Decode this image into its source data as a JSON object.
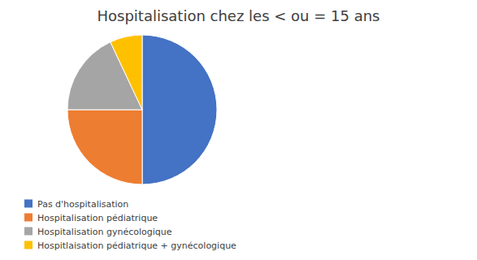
{
  "chart_data": {
    "type": "pie",
    "title": "Hospitalisation chez les < ou = 15 ans",
    "categories": [
      "Pas d'hospitalisation",
      "Hospitalisation pédiatrique",
      "Hospitalisation gynécologique",
      "Hospitlaisation pédiatrique + gynécologique"
    ],
    "values": [
      50,
      25,
      18,
      7
    ],
    "colors": [
      "#4472C4",
      "#ED7D31",
      "#A5A5A5",
      "#FFC000"
    ],
    "legend": "lower left"
  }
}
